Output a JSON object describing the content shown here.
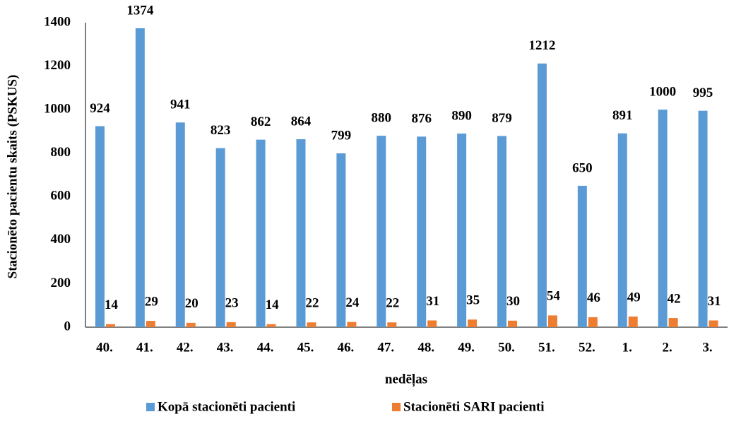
{
  "chart_data": {
    "type": "bar",
    "x_label": "nedēļas",
    "y_label": "Stacionēto pacientu skaits (PSKUS)",
    "categories": [
      "40.",
      "41.",
      "42.",
      "43.",
      "44.",
      "45.",
      "46.",
      "47.",
      "48.",
      "49.",
      "50.",
      "51.",
      "52.",
      "1.",
      "2.",
      "3."
    ],
    "series": [
      {
        "name": "Kopā stacionēti pacienti",
        "color": "#5b9bd5",
        "values": [
          924,
          1374,
          941,
          823,
          862,
          864,
          799,
          880,
          876,
          890,
          879,
          1212,
          650,
          891,
          1000,
          995
        ]
      },
      {
        "name": "Stacionēti SARI pacienti",
        "color": "#ed7d31",
        "values": [
          14,
          29,
          20,
          23,
          14,
          22,
          24,
          22,
          31,
          35,
          30,
          54,
          46,
          49,
          42,
          31
        ]
      }
    ],
    "ylim": [
      0,
      1400
    ],
    "yticks": [
      0,
      200,
      400,
      600,
      800,
      1000,
      1200,
      1400
    ],
    "grid": false,
    "legend": "bottom"
  }
}
